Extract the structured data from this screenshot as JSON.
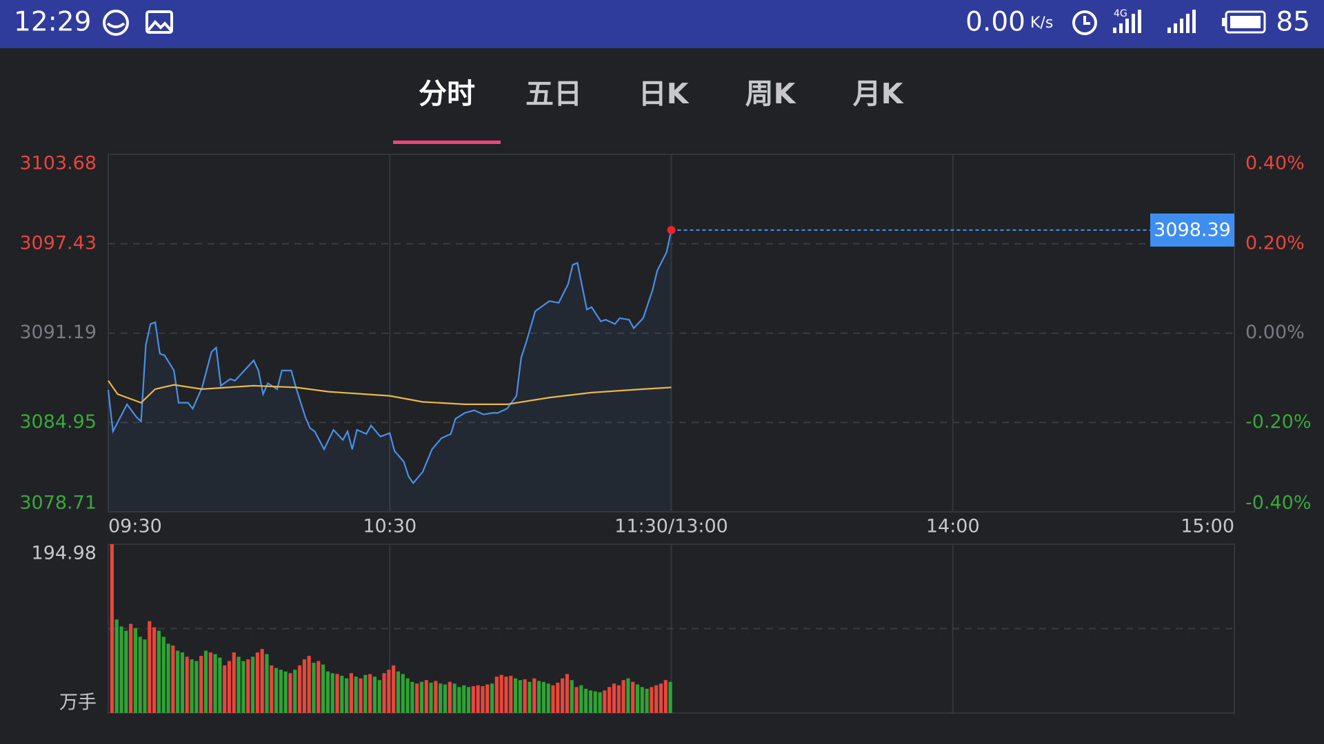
{
  "status_bar": {
    "time": "12:29",
    "net_speed": "0.00",
    "speed_unit": "K/s",
    "network": "4G",
    "battery": "85"
  },
  "tabs": {
    "items": [
      "分时",
      "五日",
      "日K",
      "周K",
      "月K"
    ],
    "active": 0
  },
  "chart_data": [
    {
      "type": "line",
      "xlim": [
        0,
        240
      ],
      "xticks": [
        {
          "value": 0,
          "label": "09:30"
        },
        {
          "value": 60,
          "label": "10:30"
        },
        {
          "value": 120,
          "label": "11:30/13:00"
        },
        {
          "value": 180,
          "label": "14:00"
        },
        {
          "value": 240,
          "label": "15:00"
        }
      ],
      "ylim": [
        3078.71,
        3103.68
      ],
      "yticks": [
        3103.68,
        3097.43,
        3091.19,
        3084.95,
        3078.71
      ],
      "y2lim": [
        -0.4,
        0.4
      ],
      "y2ticks": [
        {
          "value": 0.4,
          "label": "0.40%"
        },
        {
          "value": 0.2,
          "label": "0.20%"
        },
        {
          "value": 0,
          "label": "0.00%"
        },
        {
          "value": -0.2,
          "label": "-0.20%"
        },
        {
          "value": -0.4,
          "label": "-0.40%"
        }
      ],
      "grid": true,
      "series": [
        {
          "color": "#4a90e8",
          "x": [
            0,
            1,
            4,
            6,
            7,
            8,
            9,
            10,
            11,
            12,
            14,
            15,
            17,
            18,
            20,
            22,
            23,
            24,
            26,
            27,
            29,
            31,
            32,
            33,
            34,
            36,
            37,
            39,
            40,
            42,
            43,
            44,
            46,
            48,
            50,
            51,
            52,
            53,
            55,
            56,
            58,
            60,
            61,
            63,
            64,
            65,
            67,
            69,
            71,
            73,
            74,
            76,
            78,
            80,
            82,
            83,
            85,
            87,
            88,
            89,
            91,
            93,
            94,
            96,
            98,
            99,
            100,
            102,
            103,
            105,
            106,
            108,
            109,
            111,
            112,
            114,
            116,
            117,
            119,
            120
          ],
          "values": [
            3087.22,
            3084.33,
            3086.22,
            3085.33,
            3085.03,
            3090.35,
            3091.83,
            3091.95,
            3089.76,
            3089.64,
            3088.58,
            3086.33,
            3086.33,
            3085.92,
            3087.4,
            3089.88,
            3090.18,
            3087.52,
            3087.99,
            3087.87,
            3088.58,
            3089.29,
            3088.58,
            3086.93,
            3087.69,
            3087.28,
            3088.58,
            3088.58,
            3087.4,
            3085.33,
            3084.56,
            3084.33,
            3083.08,
            3084.44,
            3083.73,
            3084.33,
            3083.08,
            3084.44,
            3084.15,
            3084.74,
            3083.97,
            3084.21,
            3082.97,
            3082.2,
            3081.19,
            3080.72,
            3081.49,
            3083.08,
            3083.85,
            3084.15,
            3085.21,
            3085.62,
            3085.8,
            3085.51,
            3085.62,
            3085.62,
            3085.92,
            3086.81,
            3089.47,
            3090.47,
            3092.72,
            3093.19,
            3093.43,
            3093.31,
            3094.61,
            3095.97,
            3096.09,
            3092.84,
            3093.01,
            3092.01,
            3092.13,
            3091.83,
            3092.24,
            3092.13,
            3091.53,
            3092.24,
            3094.19,
            3095.55,
            3096.85,
            3098.39
          ]
        },
        {
          "color": "#e9b84c",
          "x": [
            0,
            2,
            7,
            10,
            14,
            20,
            31,
            40,
            47,
            60,
            67,
            76,
            85,
            94,
            103,
            114,
            120
          ],
          "values": [
            3087.87,
            3086.93,
            3086.33,
            3087.28,
            3087.58,
            3087.28,
            3087.52,
            3087.4,
            3087.1,
            3086.81,
            3086.39,
            3086.22,
            3086.22,
            3086.69,
            3087.04,
            3087.28,
            3087.4
          ]
        }
      ]
    },
    {
      "type": "bar",
      "xlim": [
        0,
        240
      ],
      "ylim": [
        0,
        194.98
      ],
      "yticks": [
        194.98
      ],
      "y_label": "万手",
      "values": [
        194.98,
        108,
        100,
        95,
        103,
        98,
        88,
        85,
        106,
        99,
        95,
        88,
        80,
        78,
        72,
        70,
        65,
        62,
        60,
        66,
        72,
        70,
        68,
        64,
        55,
        60,
        70,
        65,
        60,
        62,
        65,
        70,
        74,
        68,
        55,
        52,
        50,
        48,
        46,
        50,
        55,
        62,
        66,
        58,
        60,
        56,
        48,
        46,
        45,
        43,
        40,
        46,
        42,
        40,
        44,
        45,
        42,
        38,
        46,
        50,
        55,
        48,
        45,
        40,
        36,
        34,
        36,
        38,
        35,
        37,
        34,
        33,
        36,
        34,
        30,
        32,
        30,
        31,
        32,
        31,
        33,
        34,
        42,
        44,
        42,
        43,
        40,
        38,
        39,
        36,
        40,
        37,
        36,
        34,
        32,
        35,
        40,
        45,
        38,
        30,
        32,
        28,
        26,
        25,
        24,
        26,
        30,
        34,
        32,
        38,
        40,
        36,
        33,
        30,
        28,
        30,
        32,
        34,
        38,
        36
      ],
      "colors": [
        "#e8453c",
        "#2fa336",
        "#2fa336",
        "#2fa336",
        "#e8453c",
        "#2fa336",
        "#2fa336",
        "#2fa336",
        "#e8453c",
        "#e8453c",
        "#2fa336",
        "#2fa336",
        "#2fa336",
        "#e8453c",
        "#2fa336",
        "#2fa336",
        "#e8453c",
        "#2fa336",
        "#2fa336",
        "#e8453c",
        "#2fa336",
        "#e8453c",
        "#2fa336",
        "#2fa336",
        "#e8453c",
        "#e8453c",
        "#e8453c",
        "#2fa336",
        "#2fa336",
        "#e8453c",
        "#2fa336",
        "#e8453c",
        "#e8453c",
        "#2fa336",
        "#e8453c",
        "#2fa336",
        "#2fa336",
        "#2fa336",
        "#e8453c",
        "#2fa336",
        "#e8453c",
        "#e8453c",
        "#e8453c",
        "#2fa336",
        "#e8453c",
        "#2fa336",
        "#2fa336",
        "#2fa336",
        "#e8453c",
        "#2fa336",
        "#2fa336",
        "#e8453c",
        "#2fa336",
        "#e8453c",
        "#2fa336",
        "#e8453c",
        "#2fa336",
        "#2fa336",
        "#e8453c",
        "#e8453c",
        "#e8453c",
        "#2fa336",
        "#2fa336",
        "#2fa336",
        "#2fa336",
        "#e8453c",
        "#2fa336",
        "#e8453c",
        "#2fa336",
        "#e8453c",
        "#2fa336",
        "#2fa336",
        "#e8453c",
        "#2fa336",
        "#2fa336",
        "#2fa336",
        "#2fa336",
        "#e8453c",
        "#e8453c",
        "#e8453c",
        "#e8453c",
        "#2fa336",
        "#e8453c",
        "#e8453c",
        "#e8453c",
        "#e8453c",
        "#2fa336",
        "#2fa336",
        "#e8453c",
        "#2fa336",
        "#e8453c",
        "#2fa336",
        "#2fa336",
        "#2fa336",
        "#e8453c",
        "#e8453c",
        "#e8453c",
        "#e8453c",
        "#2fa336",
        "#e8453c",
        "#2fa336",
        "#2fa336",
        "#2fa336",
        "#2fa336",
        "#2fa336",
        "#e8453c",
        "#e8453c",
        "#e8453c",
        "#e8453c",
        "#e8453c",
        "#2fa336",
        "#e8453c",
        "#2fa336",
        "#2fa336",
        "#2fa336",
        "#e8453c",
        "#e8453c",
        "#e8453c",
        "#e8453c",
        "#2fa336"
      ]
    }
  ]
}
